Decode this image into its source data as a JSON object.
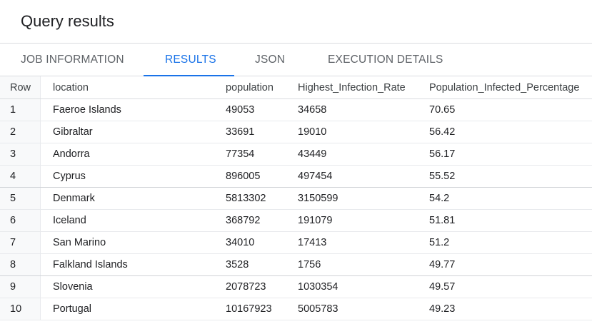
{
  "header": {
    "title": "Query results"
  },
  "tabs": [
    {
      "label": "JOB INFORMATION",
      "active": false
    },
    {
      "label": "RESULTS",
      "active": true
    },
    {
      "label": "JSON",
      "active": false
    },
    {
      "label": "EXECUTION DETAILS",
      "active": false
    }
  ],
  "colors": {
    "accent": "#1a73e8",
    "divider": "#dadce0",
    "rownum_bg": "#f8f9fa"
  },
  "table": {
    "columns": [
      "Row",
      "location",
      "population",
      "Highest_Infection_Rate",
      "Population_Infected_Percentage"
    ],
    "rows": [
      [
        "1",
        "Faeroe Islands",
        "49053",
        "34658",
        "70.65"
      ],
      [
        "2",
        "Gibraltar",
        "33691",
        "19010",
        "56.42"
      ],
      [
        "3",
        "Andorra",
        "77354",
        "43449",
        "56.17"
      ],
      [
        "4",
        "Cyprus",
        "896005",
        "497454",
        "55.52"
      ],
      [
        "5",
        "Denmark",
        "5813302",
        "3150599",
        "54.2"
      ],
      [
        "6",
        "Iceland",
        "368792",
        "191079",
        "51.81"
      ],
      [
        "7",
        "San Marino",
        "34010",
        "17413",
        "51.2"
      ],
      [
        "8",
        "Falkland Islands",
        "3528",
        "1756",
        "49.77"
      ],
      [
        "9",
        "Slovenia",
        "2078723",
        "1030354",
        "49.57"
      ],
      [
        "10",
        "Portugal",
        "10167923",
        "5005783",
        "49.23"
      ]
    ]
  }
}
